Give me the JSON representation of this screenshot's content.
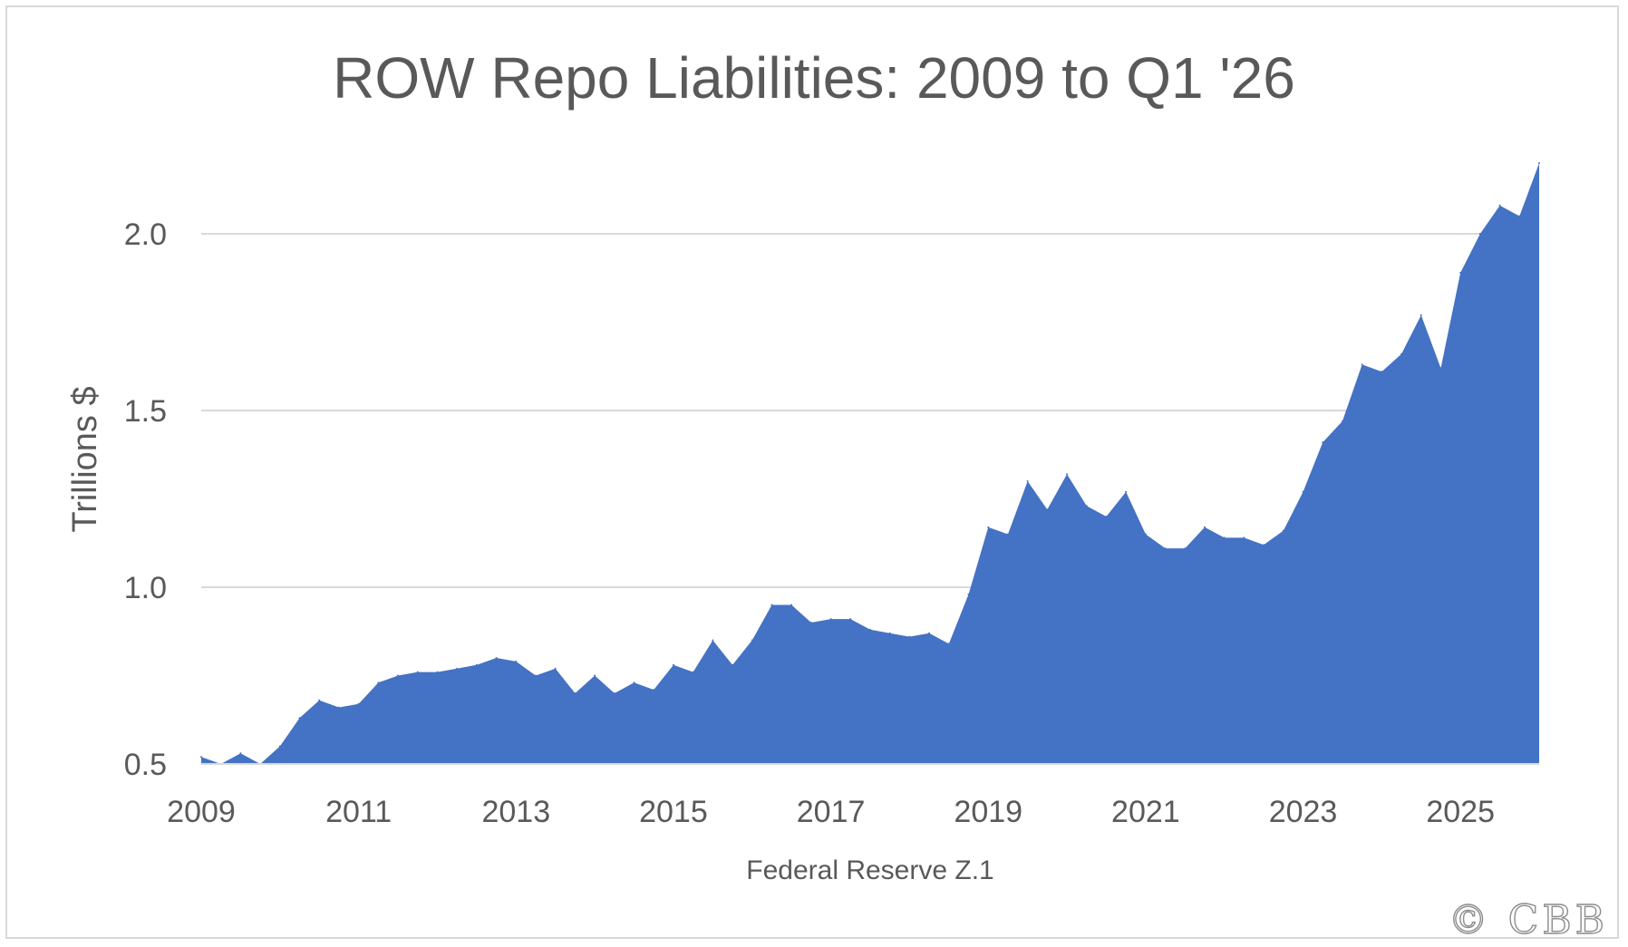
{
  "chart_data": {
    "type": "area",
    "title": "ROW Repo Liabilities: 2009 to Q1 '26",
    "ylabel": "Trillions $",
    "xlabel": "Federal Reserve Z.1",
    "ylim": [
      0.5,
      2.2
    ],
    "xlim": [
      2009,
      2026
    ],
    "yticks": [
      "0.5",
      "1.0",
      "1.5",
      "2.0"
    ],
    "ytick_values": [
      0.5,
      1.0,
      1.5,
      2.0
    ],
    "xticks": [
      "2009",
      "2011",
      "2013",
      "2015",
      "2017",
      "2019",
      "2021",
      "2023",
      "2025"
    ],
    "xtick_values": [
      2009,
      2011,
      2013,
      2015,
      2017,
      2019,
      2021,
      2023,
      2025
    ],
    "grid": "horizontal",
    "legend": "none",
    "fill_color": "#4472C4",
    "series": [
      {
        "x": [
          2009.0,
          2009.25,
          2009.5,
          2009.75,
          2010.0,
          2010.25,
          2010.5,
          2010.75,
          2011.0,
          2011.25,
          2011.5,
          2011.75,
          2012.0,
          2012.25,
          2012.5,
          2012.75,
          2013.0,
          2013.25,
          2013.5,
          2013.75,
          2014.0,
          2014.25,
          2014.5,
          2014.75,
          2015.0,
          2015.25,
          2015.5,
          2015.75,
          2016.0,
          2016.25,
          2016.5,
          2016.75,
          2017.0,
          2017.25,
          2017.5,
          2017.75,
          2018.0,
          2018.25,
          2018.5,
          2018.75,
          2019.0,
          2019.25,
          2019.5,
          2019.75,
          2020.0,
          2020.25,
          2020.5,
          2020.75,
          2021.0,
          2021.25,
          2021.5,
          2021.75,
          2022.0,
          2022.25,
          2022.5,
          2022.75,
          2023.0,
          2023.25,
          2023.5,
          2023.75,
          2024.0,
          2024.25,
          2024.5,
          2024.75,
          2025.0,
          2025.25,
          2025.5,
          2025.75,
          2026.0
        ],
        "values": [
          0.52,
          0.49,
          0.53,
          0.49,
          0.55,
          0.63,
          0.68,
          0.66,
          0.67,
          0.73,
          0.75,
          0.76,
          0.76,
          0.77,
          0.78,
          0.8,
          0.79,
          0.75,
          0.77,
          0.7,
          0.75,
          0.7,
          0.73,
          0.71,
          0.78,
          0.76,
          0.85,
          0.78,
          0.85,
          0.95,
          0.95,
          0.9,
          0.91,
          0.91,
          0.88,
          0.87,
          0.86,
          0.87,
          0.84,
          0.98,
          1.17,
          1.15,
          1.3,
          1.22,
          1.32,
          1.23,
          1.2,
          1.27,
          1.15,
          1.11,
          1.11,
          1.17,
          1.14,
          1.14,
          1.12,
          1.16,
          1.27,
          1.41,
          1.47,
          1.63,
          1.61,
          1.66,
          1.77,
          1.62,
          1.89,
          2.0,
          2.08,
          2.05,
          2.2
        ]
      }
    ]
  },
  "watermark": "© CBB"
}
